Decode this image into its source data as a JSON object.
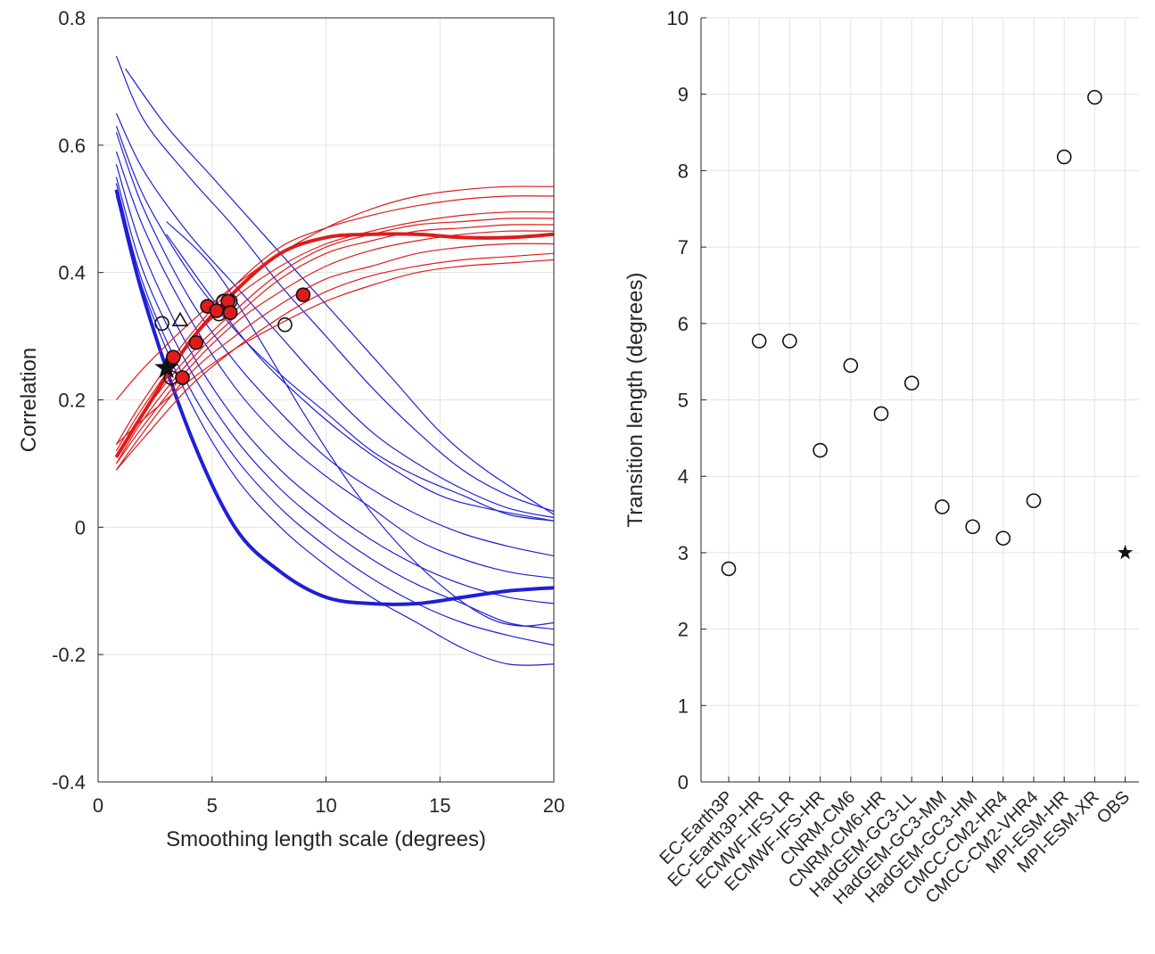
{
  "chart_data": [
    {
      "type": "line",
      "title": "",
      "xlabel": "Smoothing length scale (degrees)",
      "ylabel": "Correlation",
      "xlim": [
        0,
        20
      ],
      "ylim": [
        -0.4,
        0.8
      ],
      "xticks": [
        "0",
        "5",
        "10",
        "15",
        "20"
      ],
      "yticks": [
        "-0.4",
        "-0.2",
        "0",
        "0.2",
        "0.4",
        "0.6",
        "0.8"
      ],
      "grid": true,
      "colors": {
        "blue": "#1f1fd6",
        "red": "#e01b1b",
        "marker_fill": "#e01b1b"
      },
      "blue_series": [
        {
          "x": [
            0.8,
            2,
            4,
            6,
            8,
            10,
            12,
            14,
            16,
            18,
            20
          ],
          "y": [
            0.53,
            0.36,
            0.15,
            0.0,
            -0.07,
            -0.11,
            -0.12,
            -0.12,
            -0.11,
            -0.1,
            -0.095
          ],
          "thick": true
        },
        {
          "x": [
            0.8,
            2,
            4,
            6,
            8,
            10,
            12,
            14,
            16,
            18,
            20
          ],
          "y": [
            0.74,
            0.64,
            0.55,
            0.47,
            0.38,
            0.3,
            0.22,
            0.15,
            0.09,
            0.05,
            0.025
          ]
        },
        {
          "x": [
            1.2,
            3,
            5,
            7,
            9,
            11,
            13,
            15,
            17,
            20
          ],
          "y": [
            0.72,
            0.63,
            0.55,
            0.47,
            0.39,
            0.31,
            0.23,
            0.15,
            0.09,
            0.02
          ]
        },
        {
          "x": [
            0.8,
            2,
            4,
            6,
            8,
            10,
            12,
            14,
            16,
            18,
            20
          ],
          "y": [
            0.65,
            0.56,
            0.46,
            0.38,
            0.3,
            0.22,
            0.15,
            0.1,
            0.06,
            0.03,
            0.015
          ]
        },
        {
          "x": [
            0.8,
            2,
            4,
            6,
            8,
            10,
            12,
            14,
            16,
            18,
            20
          ],
          "y": [
            0.63,
            0.52,
            0.4,
            0.31,
            0.24,
            0.18,
            0.12,
            0.08,
            0.05,
            0.02,
            0.01
          ]
        },
        {
          "x": [
            0.8,
            2,
            4,
            6,
            8,
            10,
            12,
            14,
            16,
            18,
            20
          ],
          "y": [
            0.62,
            0.5,
            0.36,
            0.26,
            0.18,
            0.11,
            0.06,
            0.02,
            -0.01,
            -0.03,
            -0.045
          ]
        },
        {
          "x": [
            0.8,
            2,
            4,
            6,
            8,
            10,
            12,
            14,
            16,
            18,
            20
          ],
          "y": [
            0.59,
            0.47,
            0.33,
            0.22,
            0.14,
            0.08,
            0.03,
            -0.02,
            -0.05,
            -0.07,
            -0.08
          ]
        },
        {
          "x": [
            0.8,
            2,
            4,
            6,
            8,
            10,
            12,
            14,
            16,
            18,
            20
          ],
          "y": [
            0.57,
            0.43,
            0.28,
            0.17,
            0.09,
            0.03,
            -0.02,
            -0.06,
            -0.09,
            -0.11,
            -0.12
          ]
        },
        {
          "x": [
            0.8,
            2,
            4,
            6,
            8,
            10,
            12,
            14,
            16,
            18,
            20
          ],
          "y": [
            0.55,
            0.4,
            0.25,
            0.14,
            0.06,
            0.0,
            -0.05,
            -0.09,
            -0.12,
            -0.15,
            -0.16
          ]
        },
        {
          "x": [
            0.8,
            2,
            4,
            6,
            8,
            10,
            12,
            14,
            16,
            18,
            20
          ],
          "y": [
            0.54,
            0.38,
            0.22,
            0.11,
            0.03,
            -0.03,
            -0.08,
            -0.12,
            -0.15,
            -0.17,
            -0.185
          ]
        },
        {
          "x": [
            0.8,
            2,
            4,
            6,
            8,
            10,
            12,
            14,
            16,
            18,
            20
          ],
          "y": [
            0.52,
            0.37,
            0.2,
            0.08,
            0.0,
            -0.06,
            -0.11,
            -0.15,
            -0.19,
            -0.215,
            -0.215
          ]
        },
        {
          "x": [
            3,
            5,
            7,
            9,
            11,
            13,
            15,
            17,
            18.5,
            20
          ],
          "y": [
            0.48,
            0.41,
            0.3,
            0.18,
            0.07,
            -0.02,
            -0.09,
            -0.14,
            -0.155,
            -0.15
          ]
        },
        {
          "x": [
            3,
            5,
            7,
            9,
            11,
            13,
            15,
            17,
            20
          ],
          "y": [
            0.46,
            0.36,
            0.27,
            0.2,
            0.14,
            0.09,
            0.05,
            0.03,
            0.01
          ]
        }
      ],
      "red_series": [
        {
          "x": [
            0.8,
            2,
            4,
            6,
            8,
            10,
            12,
            14,
            16,
            18,
            20
          ],
          "y": [
            0.11,
            0.18,
            0.29,
            0.37,
            0.43,
            0.455,
            0.46,
            0.46,
            0.455,
            0.455,
            0.46
          ],
          "thick": true
        },
        {
          "x": [
            0.8,
            2,
            4,
            6,
            8,
            10,
            12,
            14,
            16,
            18,
            20
          ],
          "y": [
            0.2,
            0.25,
            0.32,
            0.38,
            0.43,
            0.47,
            0.5,
            0.52,
            0.53,
            0.535,
            0.535
          ]
        },
        {
          "x": [
            0.8,
            2,
            4,
            6,
            8,
            10,
            12,
            14,
            16,
            18,
            20
          ],
          "y": [
            0.13,
            0.2,
            0.3,
            0.38,
            0.44,
            0.47,
            0.49,
            0.505,
            0.515,
            0.52,
            0.52
          ]
        },
        {
          "x": [
            0.8,
            2,
            4,
            6,
            8,
            10,
            12,
            14,
            16,
            18,
            20
          ],
          "y": [
            0.12,
            0.19,
            0.29,
            0.36,
            0.41,
            0.445,
            0.465,
            0.48,
            0.49,
            0.495,
            0.495
          ]
        },
        {
          "x": [
            0.8,
            2,
            4,
            6,
            8,
            10,
            12,
            14,
            16,
            18,
            20
          ],
          "y": [
            0.11,
            0.18,
            0.27,
            0.34,
            0.4,
            0.44,
            0.46,
            0.475,
            0.48,
            0.485,
            0.485
          ]
        },
        {
          "x": [
            0.8,
            2,
            4,
            6,
            8,
            10,
            12,
            14,
            16,
            18,
            20
          ],
          "y": [
            0.1,
            0.17,
            0.26,
            0.33,
            0.39,
            0.43,
            0.45,
            0.465,
            0.47,
            0.475,
            0.475
          ]
        },
        {
          "x": [
            0.8,
            2,
            4,
            6,
            8,
            10,
            12,
            14,
            16,
            18,
            20
          ],
          "y": [
            0.1,
            0.16,
            0.25,
            0.32,
            0.37,
            0.41,
            0.435,
            0.45,
            0.46,
            0.465,
            0.465
          ]
        },
        {
          "x": [
            0.8,
            2,
            4,
            6,
            8,
            10,
            12,
            14,
            16,
            18,
            20
          ],
          "y": [
            0.09,
            0.15,
            0.24,
            0.3,
            0.35,
            0.39,
            0.41,
            0.43,
            0.44,
            0.445,
            0.445
          ]
        },
        {
          "x": [
            0.8,
            2,
            4,
            6,
            8,
            10,
            12,
            14,
            16,
            18,
            20
          ],
          "y": [
            0.09,
            0.14,
            0.22,
            0.28,
            0.33,
            0.37,
            0.395,
            0.41,
            0.42,
            0.425,
            0.43
          ]
        },
        {
          "x": [
            0.8,
            2,
            4,
            6,
            8,
            10,
            12,
            14,
            16,
            18,
            20
          ],
          "y": [
            0.13,
            0.17,
            0.23,
            0.28,
            0.32,
            0.355,
            0.38,
            0.4,
            0.41,
            0.415,
            0.42
          ]
        }
      ],
      "open_circles": [
        {
          "x": 2.8,
          "y": 0.32
        },
        {
          "x": 3.2,
          "y": 0.235
        },
        {
          "x": 5.3,
          "y": 0.335
        },
        {
          "x": 5.5,
          "y": 0.355
        },
        {
          "x": 5.8,
          "y": 0.355
        },
        {
          "x": 8.2,
          "y": 0.318
        }
      ],
      "filled_circles": [
        {
          "x": 3.3,
          "y": 0.267
        },
        {
          "x": 3.7,
          "y": 0.235
        },
        {
          "x": 4.3,
          "y": 0.29
        },
        {
          "x": 4.8,
          "y": 0.347
        },
        {
          "x": 5.2,
          "y": 0.34
        },
        {
          "x": 5.7,
          "y": 0.355
        },
        {
          "x": 5.8,
          "y": 0.337
        },
        {
          "x": 9.0,
          "y": 0.365
        }
      ],
      "triangles": [
        {
          "x": 3.6,
          "y": 0.325
        }
      ],
      "stars": [
        {
          "x": 3.0,
          "y": 0.25
        }
      ]
    },
    {
      "type": "scatter",
      "title": "",
      "xlabel": "",
      "ylabel": "Transition length (degrees)",
      "ylim": [
        0,
        10
      ],
      "yticks": [
        "0",
        "1",
        "2",
        "3",
        "4",
        "5",
        "6",
        "7",
        "8",
        "9",
        "10"
      ],
      "grid": true,
      "categories": [
        "EC-Earth3P",
        "EC-Earth3P-HR",
        "ECMWF-IFS-LR",
        "ECMWF-IFS-HR",
        "CNRM-CM6",
        "CNRM-CM6-HR",
        "HadGEM-GC3-LL",
        "HadGEM-GC3-MM",
        "HadGEM-GC3-HM",
        "CMCC-CM2-HR4",
        "CMCC-CM2-VHR4",
        "MPI-ESM-HR",
        "MPI-ESM-XR",
        "OBS"
      ],
      "values": [
        2.79,
        5.77,
        5.77,
        4.34,
        5.45,
        4.82,
        5.22,
        3.6,
        3.34,
        3.19,
        3.68,
        8.18,
        8.96,
        3.0
      ],
      "markers": [
        "circle",
        "circle",
        "circle",
        "circle",
        "circle",
        "circle",
        "circle",
        "circle",
        "circle",
        "circle",
        "circle",
        "circle",
        "circle",
        "star"
      ]
    }
  ]
}
